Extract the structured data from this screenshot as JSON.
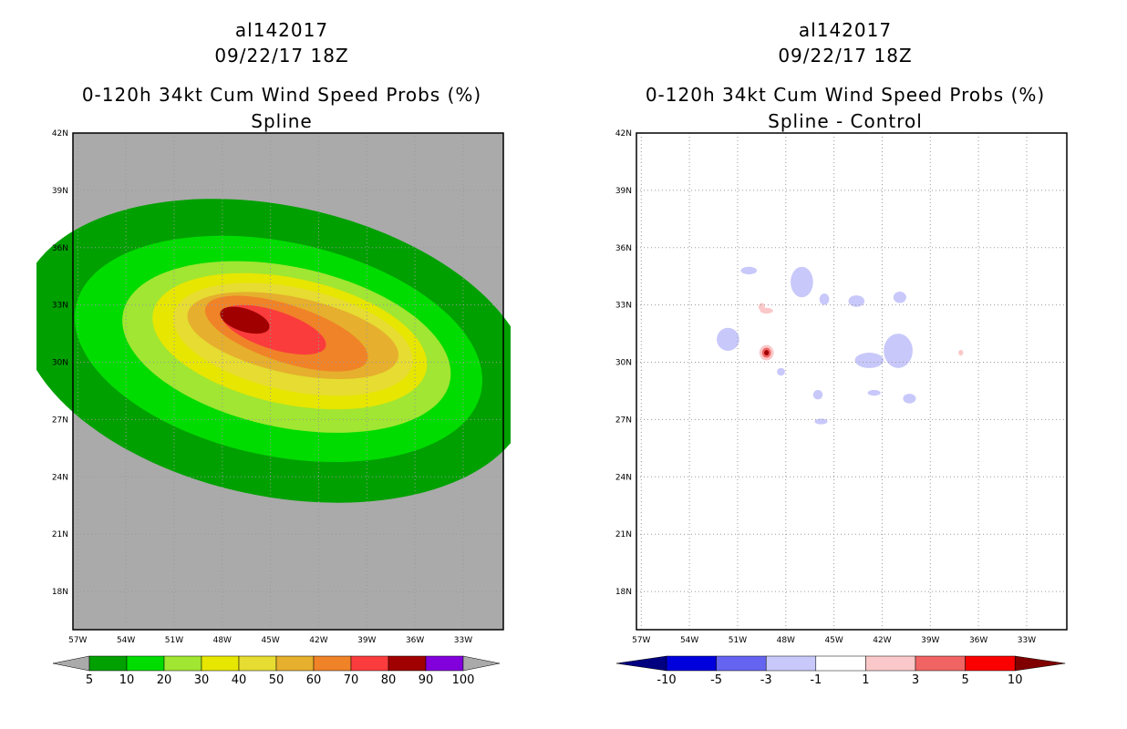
{
  "chart_data": [
    {
      "type": "heatmap",
      "storm_id": "al142017",
      "datetime": "09/22/17 18Z",
      "title": "0-120h 34kt Cum Wind Speed Probs (%)",
      "subtitle": "Spline",
      "x_ticks": [
        "57W",
        "54W",
        "51W",
        "48W",
        "45W",
        "42W",
        "39W",
        "36W",
        "33W"
      ],
      "y_ticks": [
        "42N",
        "39N",
        "36N",
        "33N",
        "30N",
        "27N",
        "24N",
        "21N",
        "18N"
      ],
      "xlim_lon": [
        -57.3,
        -30.5
      ],
      "ylim_lat": [
        16.0,
        42.0
      ],
      "background_color": "#aaaaaa",
      "colorbar": {
        "levels": [
          "5",
          "10",
          "20",
          "30",
          "40",
          "50",
          "60",
          "70",
          "80",
          "90",
          "100"
        ],
        "colors": [
          "#00a000",
          "#00dc00",
          "#a0e632",
          "#e6e600",
          "#e6dc32",
          "#e6af2d",
          "#f08228",
          "#fa3c3c",
          "#a00000",
          "#8200dc"
        ],
        "extend_color": "#aaaaaa"
      },
      "contours": [
        {
          "level": 5,
          "color": "#00a000",
          "center": [
            -44.7,
            30.6
          ],
          "rx": 16.2,
          "ry": 7.6
        },
        {
          "level": 10,
          "color": "#00dc00",
          "center": [
            -44.5,
            30.7
          ],
          "rx": 12.9,
          "ry": 5.6
        },
        {
          "level": 20,
          "color": "#a0e632",
          "center": [
            -44.0,
            30.8
          ],
          "rx": 10.4,
          "ry": 4.2
        },
        {
          "level": 30,
          "color": "#e6e600",
          "center": [
            -43.8,
            31.1
          ],
          "rx": 8.7,
          "ry": 3.3
        },
        {
          "level": 40,
          "color": "#e6dc32",
          "center": [
            -43.6,
            31.2
          ],
          "rx": 7.6,
          "ry": 2.7
        },
        {
          "level": 50,
          "color": "#e6af2d",
          "center": [
            -43.6,
            31.4
          ],
          "rx": 6.7,
          "ry": 2.0
        },
        {
          "level": 60,
          "color": "#f08228",
          "center": [
            -44.0,
            31.5
          ],
          "rx": 5.3,
          "ry": 1.5
        },
        {
          "level": 70,
          "color": "#fa3c3c",
          "center": [
            -44.8,
            31.7
          ],
          "rx": 3.4,
          "ry": 1.0
        },
        {
          "level": 80,
          "color": "#a00000",
          "center": [
            -46.6,
            32.2
          ],
          "rx": 1.6,
          "ry": 0.6
        }
      ]
    },
    {
      "type": "heatmap",
      "storm_id": "al142017",
      "datetime": "09/22/17 18Z",
      "title": "0-120h 34kt Cum Wind Speed Probs (%)",
      "subtitle": "Spline - Control",
      "x_ticks": [
        "57W",
        "54W",
        "51W",
        "48W",
        "45W",
        "42W",
        "39W",
        "36W",
        "33W"
      ],
      "y_ticks": [
        "42N",
        "39N",
        "36N",
        "33N",
        "30N",
        "27N",
        "24N",
        "21N",
        "18N"
      ],
      "xlim_lon": [
        -57.3,
        -30.5
      ],
      "ylim_lat": [
        16.0,
        42.0
      ],
      "background_color": "#ffffff",
      "colorbar": {
        "levels": [
          "-10",
          "-5",
          "-3",
          "-1",
          "1",
          "3",
          "5",
          "10"
        ],
        "colors": [
          "#0000dc",
          "#6464f0",
          "#c8c8fa",
          "#ffffff",
          "#fac8c8",
          "#f06464",
          "#fa0000"
        ],
        "extend_low": "#000080",
        "extend_high": "#800000"
      },
      "anomalies": [
        {
          "lon": -50.3,
          "lat": 34.8,
          "rx": 0.5,
          "ry": 0.2,
          "color": "#c8c8fa"
        },
        {
          "lon": -47.0,
          "lat": 34.2,
          "rx": 0.7,
          "ry": 0.8,
          "color": "#c8c8fa"
        },
        {
          "lon": -45.6,
          "lat": 33.3,
          "rx": 0.3,
          "ry": 0.3,
          "color": "#c8c8fa"
        },
        {
          "lon": -43.6,
          "lat": 33.2,
          "rx": 0.5,
          "ry": 0.3,
          "color": "#c8c8fa"
        },
        {
          "lon": -40.9,
          "lat": 33.4,
          "rx": 0.4,
          "ry": 0.3,
          "color": "#c8c8fa"
        },
        {
          "lon": -51.6,
          "lat": 31.2,
          "rx": 0.7,
          "ry": 0.6,
          "color": "#c8c8fa"
        },
        {
          "lon": -41.0,
          "lat": 30.6,
          "rx": 0.9,
          "ry": 0.9,
          "color": "#c8c8fa"
        },
        {
          "lon": -42.8,
          "lat": 30.1,
          "rx": 0.9,
          "ry": 0.4,
          "color": "#c8c8fa"
        },
        {
          "lon": -48.3,
          "lat": 29.5,
          "rx": 0.25,
          "ry": 0.2,
          "color": "#c8c8fa"
        },
        {
          "lon": -46.0,
          "lat": 28.3,
          "rx": 0.3,
          "ry": 0.25,
          "color": "#c8c8fa"
        },
        {
          "lon": -42.5,
          "lat": 28.4,
          "rx": 0.4,
          "ry": 0.15,
          "color": "#c8c8fa"
        },
        {
          "lon": -40.3,
          "lat": 28.1,
          "rx": 0.4,
          "ry": 0.25,
          "color": "#c8c8fa"
        },
        {
          "lon": -45.8,
          "lat": 26.9,
          "rx": 0.4,
          "ry": 0.15,
          "color": "#c8c8fa"
        },
        {
          "lon": -49.2,
          "lat": 32.7,
          "rx": 0.4,
          "ry": 0.15,
          "color": "#fac8c8"
        },
        {
          "lon": -49.5,
          "lat": 32.9,
          "rx": 0.2,
          "ry": 0.2,
          "color": "#fac8c8"
        },
        {
          "lon": -37.1,
          "lat": 30.5,
          "rx": 0.15,
          "ry": 0.15,
          "color": "#fac8c8"
        },
        {
          "lon": -49.2,
          "lat": 30.5,
          "rx": 0.45,
          "ry": 0.4,
          "color": "#fac8c8"
        },
        {
          "lon": -49.2,
          "lat": 30.5,
          "rx": 0.28,
          "ry": 0.26,
          "color": "#f06464"
        },
        {
          "lon": -49.2,
          "lat": 30.5,
          "rx": 0.15,
          "ry": 0.14,
          "color": "#a00000"
        }
      ]
    }
  ]
}
